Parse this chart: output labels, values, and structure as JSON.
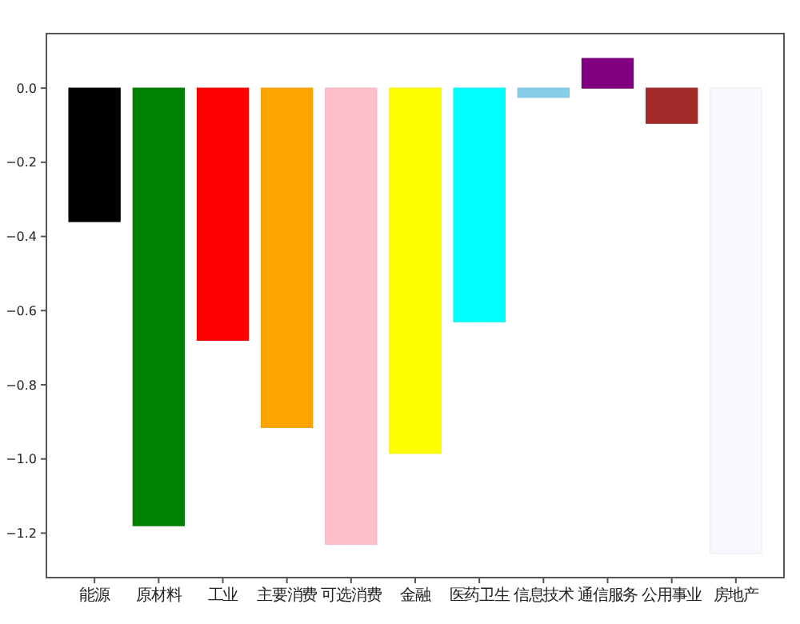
{
  "chart_data": {
    "type": "bar",
    "categories": [
      "能源",
      "原材料",
      "工业",
      "主要消费",
      "可选消费",
      "金融",
      "医药卫生",
      "信息技术",
      "通信服务",
      "公用事业",
      "房地产"
    ],
    "values": [
      -0.36,
      -1.18,
      -0.68,
      -0.915,
      -1.23,
      -0.985,
      -0.63,
      -0.025,
      0.08,
      -0.095,
      -1.255
    ],
    "colors": [
      "#000000",
      "#008000",
      "#ff0000",
      "#ffa500",
      "#ffc0cb",
      "#ffff00",
      "#00ffff",
      "#87ceeb",
      "#800080",
      "#a52a2a",
      "#f8f8ff"
    ],
    "ylim": [
      -1.32,
      0.147
    ],
    "yticks": [
      {
        "value": -1.2,
        "label": "−1.2"
      },
      {
        "value": -1.0,
        "label": "−1.0"
      },
      {
        "value": -0.8,
        "label": "−0.8"
      },
      {
        "value": -0.6,
        "label": "−0.6"
      },
      {
        "value": -0.4,
        "label": "−0.4"
      },
      {
        "value": -0.2,
        "label": "−0.2"
      },
      {
        "value": 0,
        "label": "0.0"
      }
    ],
    "grid": false
  }
}
